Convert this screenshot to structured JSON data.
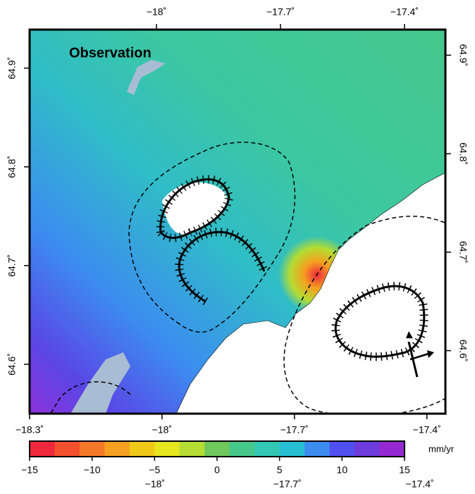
{
  "chart_data": {
    "type": "map",
    "title": "Observation",
    "top_lon_lim": [
      -18.307,
      -17.301
    ],
    "top_lon_ticks": [
      {
        "value": -18,
        "label": "−18˚"
      },
      {
        "value": -17.7,
        "label": "−17.7˚"
      },
      {
        "value": -17.4,
        "label": "−17.4˚"
      }
    ],
    "bottom_lon_lim": [
      -18.3,
      -17.358
    ],
    "bottom_lon_ticks": [
      {
        "value": -18.3,
        "label": "−18.3˚"
      },
      {
        "value": -18,
        "label": "−18˚"
      },
      {
        "value": -17.7,
        "label": "−17.7˚"
      },
      {
        "value": -17.4,
        "label": "−17.4˚"
      }
    ],
    "left_lat_lim": [
      64.55,
      64.939
    ],
    "left_lat_ticks": [
      {
        "value": 64.6,
        "label": "64.6˚"
      },
      {
        "value": 64.7,
        "label": "64.7˚"
      },
      {
        "value": 64.8,
        "label": "64.8˚"
      },
      {
        "value": 64.9,
        "label": "64.9˚"
      }
    ],
    "right_lat_lim": [
      64.536,
      64.926
    ],
    "right_lat_ticks": [
      {
        "value": 64.6,
        "label": "64.6˚"
      },
      {
        "value": 64.7,
        "label": "64.7˚"
      },
      {
        "value": 64.8,
        "label": "64.8˚"
      },
      {
        "value": 64.9,
        "label": "64.9˚"
      }
    ],
    "colorbar": {
      "unit": "mm/yr",
      "lim": [
        -15,
        15
      ],
      "ticks": [
        {
          "value": -15,
          "label": "−15"
        },
        {
          "value": -10,
          "label": "−10"
        },
        {
          "value": -5,
          "label": "−5"
        },
        0,
        5,
        10,
        15
      ],
      "colors": [
        "#f0283c",
        "#f5502d",
        "#f57828",
        "#f5a020",
        "#f0c818",
        "#e6e61e",
        "#b4dc32",
        "#6ec85a",
        "#46c88c",
        "#32c8b4",
        "#28bed2",
        "#3c8cf0",
        "#5050f0",
        "#6e3cdc",
        "#9628d2"
      ],
      "overlap_lon_ticks": [
        {
          "value": -18,
          "label": "−18˚"
        },
        {
          "value": -17.7,
          "label": "−17.7˚"
        },
        {
          "value": -17.4,
          "label": "−17.4˚"
        }
      ]
    }
  }
}
